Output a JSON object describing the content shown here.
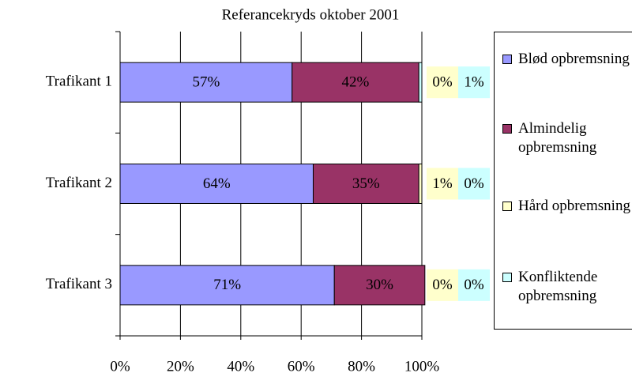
{
  "chart_data": {
    "type": "bar",
    "orientation": "horizontal",
    "stacked": true,
    "title": "Referancekryds oktober 2001",
    "categories": [
      "Trafikant 1",
      "Trafikant 2",
      "Trafikant 3"
    ],
    "series": [
      {
        "name": "Blød opbremsning",
        "color": "#9999ff",
        "values": [
          57,
          64,
          71
        ],
        "value_labels": [
          "57%",
          "64%",
          "71%"
        ]
      },
      {
        "name": "Almindelig opbremsning",
        "color": "#993366",
        "values": [
          42,
          35,
          30
        ],
        "value_labels": [
          "42%",
          "35%",
          "30%"
        ]
      },
      {
        "name": "Hård opbremsning",
        "color": "#ffffcc",
        "values": [
          0,
          1,
          0
        ],
        "value_labels": [
          "0%",
          "1%",
          "0%"
        ]
      },
      {
        "name": "Konfliktende opbremsning",
        "color": "#ccffff",
        "values": [
          1,
          0,
          0
        ],
        "value_labels": [
          "1%",
          "0%",
          "0%"
        ]
      }
    ],
    "xlim": [
      0,
      100
    ],
    "xticks": [
      {
        "value": 0,
        "label": "0%"
      },
      {
        "value": 20,
        "label": "20%"
      },
      {
        "value": 40,
        "label": "40%"
      },
      {
        "value": 60,
        "label": "60%"
      },
      {
        "value": 80,
        "label": "80%"
      },
      {
        "value": 100,
        "label": "100%"
      }
    ],
    "grid": true,
    "legend": "right"
  }
}
